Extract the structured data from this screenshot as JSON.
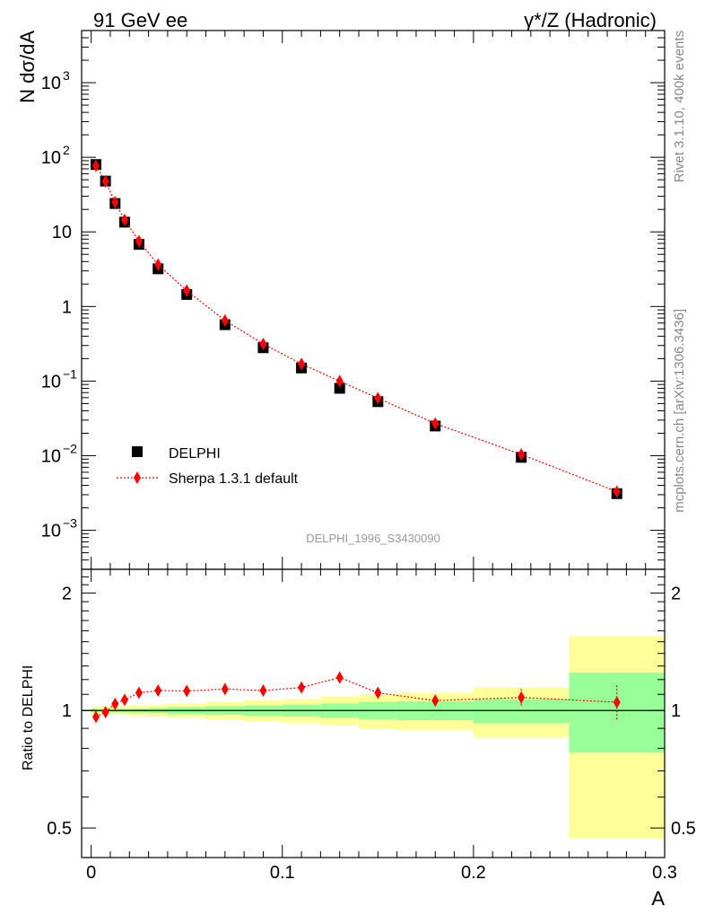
{
  "header": {
    "left_title": "91 GeV ee",
    "right_title": "γ*/Z (Hadronic)"
  },
  "side_labels": {
    "rivet": "Rivet 3.1.10,  400k events",
    "mcplots": "mcplots.cern.ch [arXiv:1306.3436]"
  },
  "watermark": "DELPHI_1996_S3430090",
  "colors": {
    "data": "#000000",
    "mc": "#ff0000",
    "band_stat": "#99ff99",
    "band_total": "#ffff99"
  },
  "chart_data": [
    {
      "type": "scatter",
      "title": "",
      "ylabel": "N dσ/dA",
      "xlabel": "",
      "xlim": [
        -0.005,
        0.3
      ],
      "ylim": [
        0.0003,
        5000
      ],
      "yscale": "log",
      "grid": false,
      "legend_position": "bottom-left",
      "ytick_labels": [
        {
          "value": 0.001,
          "base": "10",
          "exp": "−3"
        },
        {
          "value": 0.01,
          "base": "10",
          "exp": "−2"
        },
        {
          "value": 0.1,
          "base": "10",
          "exp": "−1"
        },
        {
          "value": 1,
          "base": "1",
          "exp": ""
        },
        {
          "value": 10,
          "base": "10",
          "exp": ""
        },
        {
          "value": 100,
          "base": "10",
          "exp": "2"
        },
        {
          "value": 1000,
          "base": "10",
          "exp": "3"
        }
      ],
      "series": [
        {
          "name": "DELPHI",
          "marker": "square",
          "x": [
            0.0025,
            0.0075,
            0.0125,
            0.0175,
            0.025,
            0.035,
            0.05,
            0.07,
            0.09,
            0.11,
            0.13,
            0.15,
            0.18,
            0.225,
            0.275
          ],
          "y": [
            80,
            48,
            24,
            13.5,
            6.8,
            3.2,
            1.45,
            0.57,
            0.28,
            0.15,
            0.08,
            0.053,
            0.025,
            0.0095,
            0.0031
          ]
        },
        {
          "name": "Sherpa 1.3.1 default",
          "marker": "diamond",
          "line": "dotted",
          "x": [
            0.0025,
            0.0075,
            0.0125,
            0.0175,
            0.025,
            0.035,
            0.05,
            0.07,
            0.09,
            0.11,
            0.13,
            0.15,
            0.18,
            0.225,
            0.275
          ],
          "y": [
            77,
            47.5,
            25,
            14.5,
            7.5,
            3.65,
            1.63,
            0.65,
            0.315,
            0.17,
            0.1,
            0.059,
            0.027,
            0.0104,
            0.0033
          ]
        }
      ]
    },
    {
      "type": "scatter",
      "title": "",
      "ylabel": "Ratio to DELPHI",
      "xlabel": "A",
      "xlim": [
        -0.005,
        0.3
      ],
      "ylim": [
        0.42,
        2.3
      ],
      "yscale": "log",
      "grid": false,
      "xtick_labels": [
        {
          "value": 0,
          "label": "0"
        },
        {
          "value": 0.1,
          "label": "0.1"
        },
        {
          "value": 0.2,
          "label": "0.2"
        },
        {
          "value": 0.3,
          "label": "0.3"
        }
      ],
      "ytick_labels": [
        {
          "value": 0.5,
          "label": "0.5"
        },
        {
          "value": 1,
          "label": "1"
        },
        {
          "value": 2,
          "label": "2"
        }
      ],
      "bands": [
        {
          "x0": 0.0,
          "x1": 0.005,
          "stat": [
            0.99,
            1.01
          ],
          "total": [
            0.975,
            1.025
          ]
        },
        {
          "x0": 0.005,
          "x1": 0.01,
          "stat": [
            0.99,
            1.01
          ],
          "total": [
            0.975,
            1.025
          ]
        },
        {
          "x0": 0.01,
          "x1": 0.015,
          "stat": [
            0.99,
            1.01
          ],
          "total": [
            0.975,
            1.025
          ]
        },
        {
          "x0": 0.015,
          "x1": 0.02,
          "stat": [
            0.99,
            1.01
          ],
          "total": [
            0.975,
            1.025
          ]
        },
        {
          "x0": 0.02,
          "x1": 0.03,
          "stat": [
            0.988,
            1.012
          ],
          "total": [
            0.97,
            1.03
          ]
        },
        {
          "x0": 0.03,
          "x1": 0.04,
          "stat": [
            0.985,
            1.015
          ],
          "total": [
            0.965,
            1.035
          ]
        },
        {
          "x0": 0.04,
          "x1": 0.06,
          "stat": [
            0.98,
            1.02
          ],
          "total": [
            0.96,
            1.04
          ]
        },
        {
          "x0": 0.06,
          "x1": 0.08,
          "stat": [
            0.975,
            1.025
          ],
          "total": [
            0.95,
            1.05
          ]
        },
        {
          "x0": 0.08,
          "x1": 0.1,
          "stat": [
            0.97,
            1.03
          ],
          "total": [
            0.94,
            1.06
          ]
        },
        {
          "x0": 0.1,
          "x1": 0.12,
          "stat": [
            0.965,
            1.035
          ],
          "total": [
            0.93,
            1.07
          ]
        },
        {
          "x0": 0.12,
          "x1": 0.14,
          "stat": [
            0.958,
            1.042
          ],
          "total": [
            0.915,
            1.085
          ]
        },
        {
          "x0": 0.14,
          "x1": 0.16,
          "stat": [
            0.95,
            1.05
          ],
          "total": [
            0.9,
            1.1
          ]
        },
        {
          "x0": 0.16,
          "x1": 0.2,
          "stat": [
            0.945,
            1.055
          ],
          "total": [
            0.89,
            1.11
          ]
        },
        {
          "x0": 0.2,
          "x1": 0.25,
          "stat": [
            0.93,
            1.07
          ],
          "total": [
            0.855,
            1.145
          ]
        },
        {
          "x0": 0.25,
          "x1": 0.3,
          "stat": [
            0.78,
            1.25
          ],
          "total": [
            0.47,
            1.55
          ]
        }
      ],
      "series": [
        {
          "name": "Sherpa 1.3.1 default",
          "marker": "diamond",
          "line": "dotted",
          "x": [
            0.0025,
            0.0075,
            0.0125,
            0.0175,
            0.025,
            0.035,
            0.05,
            0.07,
            0.09,
            0.11,
            0.13,
            0.15,
            0.18,
            0.225,
            0.275
          ],
          "y": [
            0.963,
            0.99,
            1.04,
            1.065,
            1.11,
            1.125,
            1.122,
            1.135,
            1.125,
            1.145,
            1.215,
            1.11,
            1.06,
            1.08,
            1.05
          ],
          "err": [
            0.004,
            0.005,
            0.006,
            0.007,
            0.008,
            0.01,
            0.012,
            0.014,
            0.015,
            0.02,
            0.03,
            0.03,
            0.03,
            0.055,
            0.11
          ]
        }
      ]
    }
  ]
}
